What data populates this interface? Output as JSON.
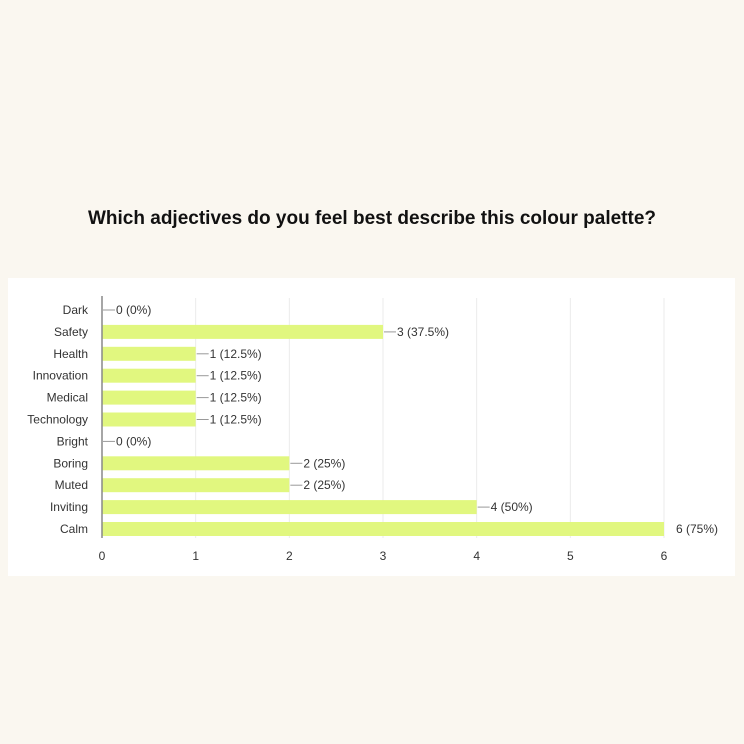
{
  "question": "Which adjectives do you feel best describe this colour palette?",
  "colors": {
    "background": "#faf7f0",
    "panel": "#ffffff",
    "bar": "#e1f77f",
    "grid": "#ebebeb",
    "axis": "#888888",
    "text": "#333333"
  },
  "chart_data": {
    "type": "bar",
    "orientation": "horizontal",
    "title": "Which adjectives do you feel best describe this colour palette?",
    "categories": [
      "Dark",
      "Safety",
      "Health",
      "Innovation",
      "Medical",
      "Technology",
      "Bright",
      "Boring",
      "Muted",
      "Inviting",
      "Calm"
    ],
    "values": [
      0,
      3,
      1,
      1,
      1,
      1,
      0,
      2,
      2,
      4,
      6
    ],
    "data_labels": [
      "0 (0%)",
      "3 (37.5%)",
      "1 (12.5%)",
      "1 (12.5%)",
      "1 (12.5%)",
      "1 (12.5%)",
      "0 (0%)",
      "2 (25%)",
      "2 (25%)",
      "4 (50%)",
      "6 (75%)"
    ],
    "x_ticks": [
      "0",
      "1",
      "2",
      "3",
      "4",
      "5",
      "6"
    ],
    "xlim": [
      0,
      6
    ],
    "xlabel": "",
    "ylabel": "",
    "grid": true,
    "legend": "none"
  }
}
